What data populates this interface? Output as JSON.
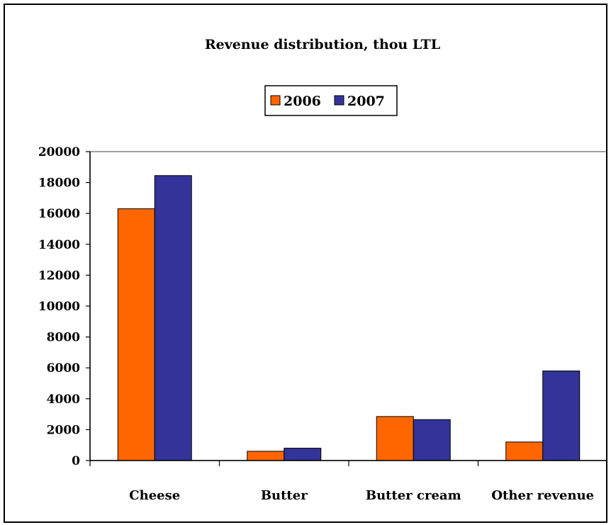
{
  "chart_data": {
    "type": "bar",
    "title": "Revenue distribution, thou LTL",
    "xlabel": "",
    "ylabel": "",
    "categories": [
      "Cheese",
      "Butter",
      "Butter cream",
      "Other revenue"
    ],
    "series": [
      {
        "name": "2006",
        "color": "#ff6600",
        "values": [
          16300,
          600,
          2850,
          1200
        ]
      },
      {
        "name": "2007",
        "color": "#333399",
        "values": [
          18450,
          800,
          2650,
          5800
        ]
      }
    ],
    "ylim": [
      0,
      20000
    ],
    "yticks": [
      0,
      2000,
      4000,
      6000,
      8000,
      10000,
      12000,
      14000,
      16000,
      18000,
      20000
    ],
    "grid": false,
    "legend_position": "top-center"
  }
}
